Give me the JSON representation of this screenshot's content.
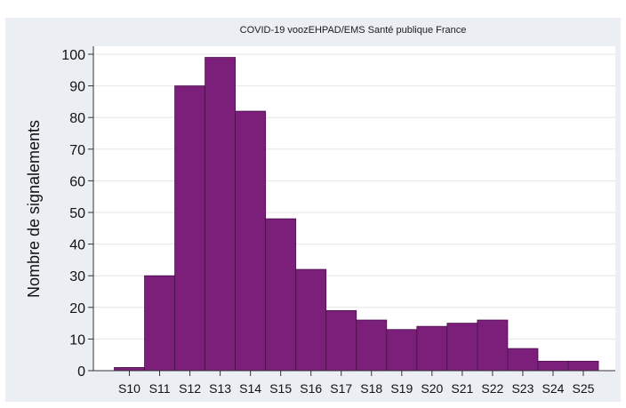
{
  "chart_data": {
    "type": "bar",
    "title": "COVID-19 voozEHPAD/EMS Santé publique France",
    "xlabel": "",
    "ylabel": "Nombre de signalements",
    "categories": [
      "S10",
      "S11",
      "S12",
      "S13",
      "S14",
      "S15",
      "S16",
      "S17",
      "S18",
      "S19",
      "S20",
      "S21",
      "S22",
      "S23",
      "S24",
      "S25"
    ],
    "values": [
      1,
      30,
      90,
      99,
      82,
      48,
      32,
      19,
      16,
      13,
      14,
      15,
      16,
      7,
      3,
      3
    ],
    "ylim": [
      0,
      100
    ],
    "yticks": [
      0,
      10,
      20,
      30,
      40,
      50,
      60,
      70,
      80,
      90,
      100
    ],
    "grid": true,
    "legend": "none",
    "colors": {
      "bar_fill": "#7b1f7b",
      "bar_stroke": "#4a0f4a",
      "plot_background": "#ffffff",
      "figure_background": "#ebeff4",
      "grid": "#e6e6e6"
    }
  }
}
